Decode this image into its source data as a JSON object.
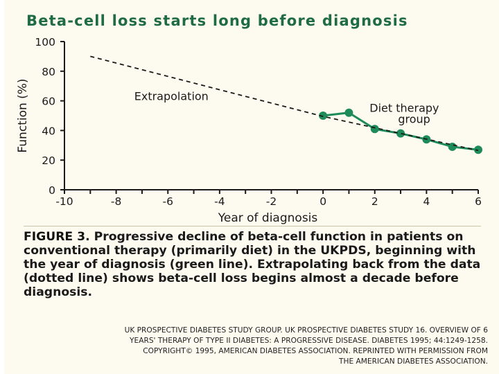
{
  "chart_data": {
    "type": "line",
    "title": "Beta-cell loss starts long before diagnosis",
    "xlabel": "Year of diagnosis",
    "ylabel": "Function (%)",
    "xlim": [
      -10,
      6
    ],
    "ylim": [
      0,
      100
    ],
    "xticks": [
      "-10",
      "-8",
      "-6",
      "-4",
      "-2",
      "0",
      "2",
      "4",
      "6"
    ],
    "yticks": [
      "0",
      "20",
      "40",
      "60",
      "80",
      "100"
    ],
    "series": [
      {
        "name": "Diet therapy group",
        "style": "solid-markers",
        "color": "#1e8c5a",
        "x": [
          0,
          1,
          2,
          3,
          4,
          5,
          6
        ],
        "y": [
          50,
          52,
          41,
          38,
          34,
          29,
          27
        ]
      },
      {
        "name": "Extrapolation",
        "style": "dashed",
        "color": "#1a1a1a",
        "x": [
          -9,
          0,
          6
        ],
        "y": [
          90,
          49.5,
          26.5
        ]
      }
    ],
    "annotations": [
      {
        "text": "Extrapolation",
        "x": -7.3,
        "y": 60.5
      },
      {
        "text": "Diet therapy",
        "x": 1.8,
        "y": 52.5
      },
      {
        "text": "group",
        "x": 2.9,
        "y": 45
      }
    ]
  },
  "caption": {
    "label": "FIGURE 3.",
    "text": "Progressive decline of beta-cell function in patients on conventional therapy (primarily diet) in the UKPDS, beginning with the year of diagnosis (green line). Extrapolating back from the data (dotted line) shows beta-cell loss begins almost a decade before diagnosis."
  },
  "credit": {
    "line1": "UK PROSPECTIVE DIABETES STUDY GROUP. UK PROSPECTIVE DIABETES STUDY 16. OVERVIEW OF 6",
    "line2": "YEARS' THERAPY OF TYPE II DIABETES: A PROGRESSIVE DISEASE. DIABETES 1995; 44:1249-1258.",
    "line3": "COPYRIGHT© 1995, AMERICAN DIABETES ASSOCIATION. REPRINTED WITH PERMISSION FROM",
    "line4": "THE AMERICAN DIABETES ASSOCIATION."
  },
  "colors": {
    "title": "#1e6b44",
    "series": "#1e8c5a",
    "background": "#fdfbf0"
  }
}
